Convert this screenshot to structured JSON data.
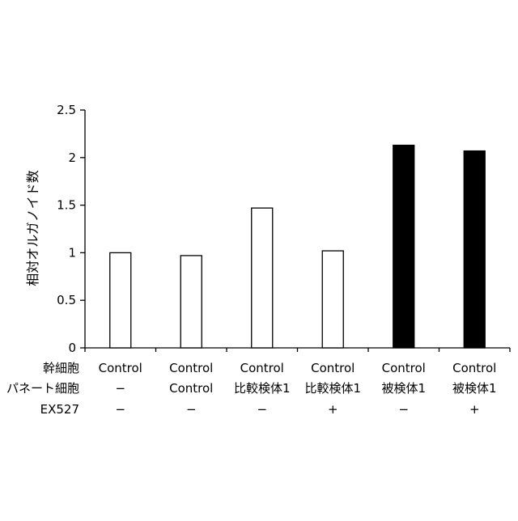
{
  "chart_data": {
    "type": "bar",
    "title": "",
    "ylabel": "相対オルガノイド数",
    "ylim": [
      0,
      2.5
    ],
    "yticks": [
      0,
      0.5,
      1,
      1.5,
      2,
      2.5
    ],
    "ytick_labels": [
      "0",
      "0.5",
      "1",
      "1.5",
      "2",
      "2.5"
    ],
    "grid": false,
    "legend": "none",
    "values": [
      1.0,
      0.97,
      1.47,
      1.02,
      2.13,
      2.07
    ],
    "bar_fills": [
      "#ffffff",
      "#ffffff",
      "#ffffff",
      "#ffffff",
      "#000000",
      "#000000"
    ],
    "condition_table": {
      "rows": [
        {
          "label": "幹細胞",
          "values": [
            "Control",
            "Control",
            "Control",
            "Control",
            "Control",
            "Control"
          ]
        },
        {
          "label": "パネート細胞",
          "values": [
            "−",
            "Control",
            "比較検体1",
            "比較検体1",
            "被検体1",
            "被検体1"
          ]
        },
        {
          "label": "EX527",
          "values": [
            "−",
            "−",
            "−",
            "+",
            "−",
            "+"
          ]
        }
      ]
    }
  }
}
